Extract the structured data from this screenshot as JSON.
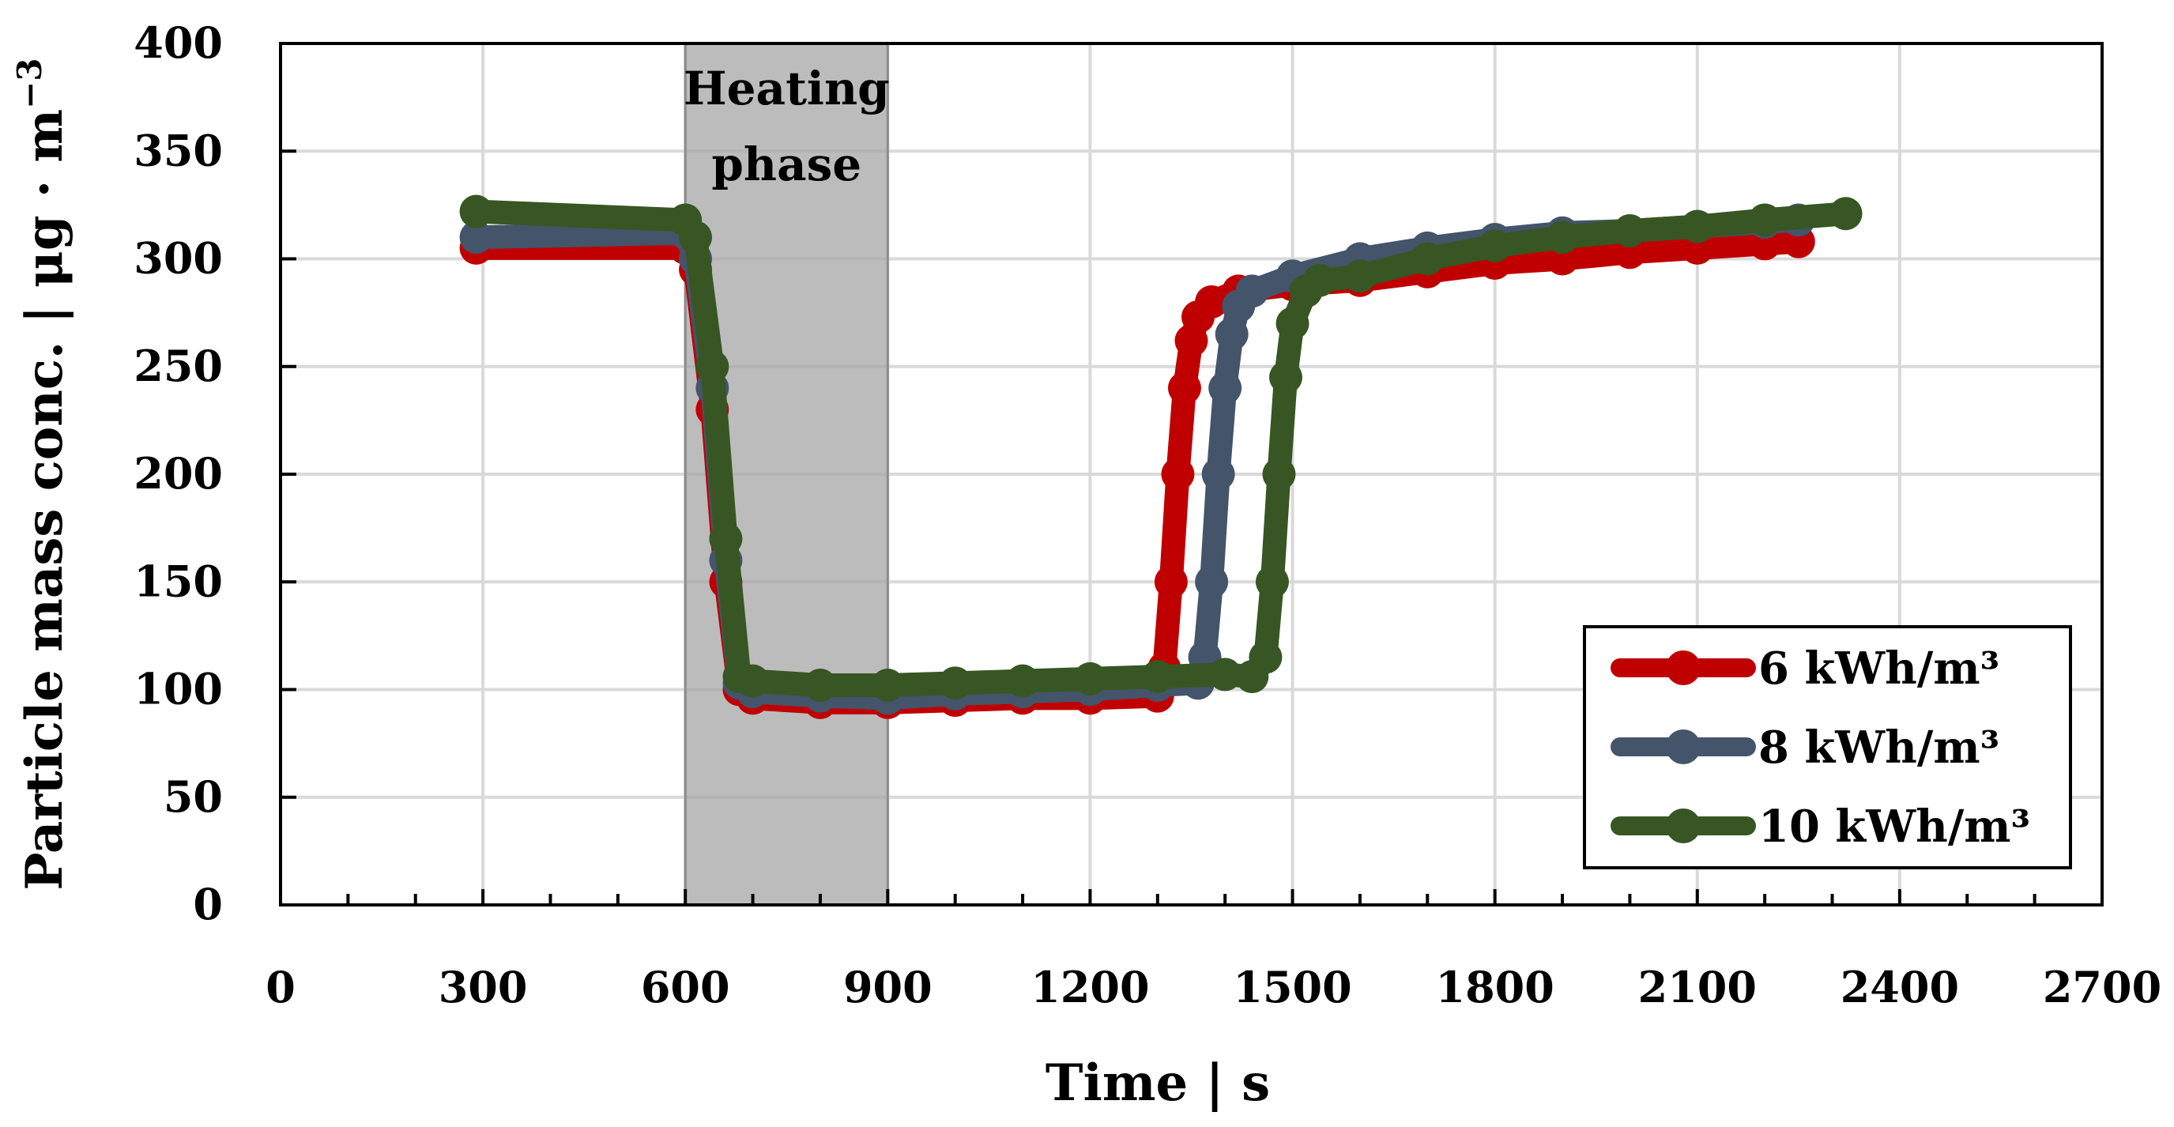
{
  "chart_data": {
    "type": "line",
    "title": "",
    "xlabel": "Time",
    "xunit": "s",
    "ylabel": "Particle mass conc.",
    "yunit": "μg · m",
    "yunit_exponent": "−3",
    "xlim": [
      0,
      2700
    ],
    "ylim": [
      0,
      400
    ],
    "xticks": [
      0,
      300,
      600,
      900,
      1200,
      1500,
      1800,
      2100,
      2400,
      2700
    ],
    "yticks": [
      0,
      50,
      100,
      150,
      200,
      250,
      300,
      350,
      400
    ],
    "grid": true,
    "legend_position": "bottom-right",
    "shaded_region": {
      "x0": 600,
      "x1": 900,
      "label_line1": "Heating",
      "label_line2": "phase",
      "color": "#a6a6a6"
    },
    "series": [
      {
        "name": "6 kWh/m³",
        "color": "#c00000",
        "x": [
          290,
          600,
          615,
          640,
          660,
          680,
          700,
          800,
          900,
          1000,
          1100,
          1200,
          1300,
          1310,
          1320,
          1330,
          1340,
          1350,
          1360,
          1380,
          1420,
          1500,
          1600,
          1700,
          1800,
          1900,
          2000,
          2100,
          2200,
          2250
        ],
        "y": [
          305,
          305,
          295,
          230,
          150,
          100,
          96,
          94,
          94,
          95,
          96,
          96,
          97,
          110,
          150,
          200,
          240,
          262,
          273,
          280,
          285,
          288,
          290,
          294,
          298,
          300,
          303,
          305,
          307,
          308
        ]
      },
      {
        "name": "8 kWh/m³",
        "color": "#44546a",
        "x": [
          290,
          600,
          615,
          640,
          660,
          680,
          700,
          800,
          900,
          1000,
          1100,
          1200,
          1300,
          1360,
          1370,
          1380,
          1390,
          1400,
          1410,
          1420,
          1440,
          1500,
          1600,
          1700,
          1800,
          1900,
          2000,
          2100,
          2200,
          2250
        ],
        "y": [
          310,
          312,
          300,
          240,
          160,
          103,
          99,
          97,
          96,
          98,
          99,
          100,
          102,
          103,
          115,
          150,
          200,
          240,
          265,
          278,
          285,
          292,
          300,
          305,
          309,
          312,
          313,
          315,
          317,
          318
        ]
      },
      {
        "name": "10 kWh/m³",
        "color": "#375623",
        "x": [
          290,
          600,
          615,
          640,
          660,
          680,
          700,
          800,
          900,
          1000,
          1100,
          1200,
          1300,
          1400,
          1440,
          1460,
          1470,
          1480,
          1490,
          1500,
          1520,
          1540,
          1600,
          1700,
          1800,
          1900,
          2000,
          2100,
          2200,
          2320
        ],
        "y": [
          322,
          318,
          310,
          250,
          170,
          106,
          104,
          102,
          102,
          103,
          104,
          105,
          106,
          107,
          106,
          115,
          150,
          200,
          245,
          270,
          285,
          290,
          292,
          300,
          306,
          310,
          313,
          315,
          318,
          321
        ]
      }
    ]
  }
}
